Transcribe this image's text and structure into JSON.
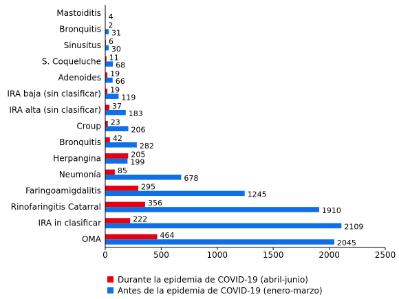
{
  "chart_data": {
    "type": "bar",
    "orientation": "horizontal",
    "categories": [
      "Mastoiditis",
      "Bronquitis",
      "Sinusitus",
      "S. Coqueluche",
      "Adenoides",
      "IRA  baja (sin clasificar)",
      "IRA alta (sin clasificar)",
      "Croup",
      "Bronquitis",
      "Herpangina",
      "Neumonía",
      "Faringoamigdalitis",
      "Rinofaringitis Catarral",
      "IRA in clasificar",
      "OMA"
    ],
    "series": [
      {
        "name": "Durante la epidemia de COVID-19 (abril-junio)",
        "color": "#e8000e",
        "values": [
          null,
          2,
          6,
          11,
          19,
          19,
          37,
          23,
          42,
          205,
          85,
          295,
          356,
          222,
          464
        ],
        "labels": [
          "",
          "2",
          "6",
          "11",
          "19",
          "19",
          "37",
          "23",
          "42",
          "205",
          "85",
          "295",
          "356",
          "222",
          "464"
        ]
      },
      {
        "name": "Antes de la epidemia de COVID-19 (enero-marzo)",
        "color": "#0f6fe6",
        "values": [
          4,
          31,
          30,
          68,
          66,
          119,
          183,
          206,
          282,
          199,
          678,
          1245,
          1910,
          2109,
          2045
        ],
        "labels": [
          "4",
          "31",
          "30",
          "68",
          "66",
          "119",
          "183",
          "206",
          "282",
          "199",
          "678",
          "1245",
          "1910",
          "2109",
          "2045"
        ]
      }
    ],
    "xlim": [
      0,
      2500
    ],
    "xticks": [
      "0",
      "500",
      "1000",
      "1500",
      "2000",
      "2500"
    ],
    "xlabel": "",
    "ylabel": "",
    "title": "",
    "grid": false,
    "legend_position": "bottom"
  }
}
